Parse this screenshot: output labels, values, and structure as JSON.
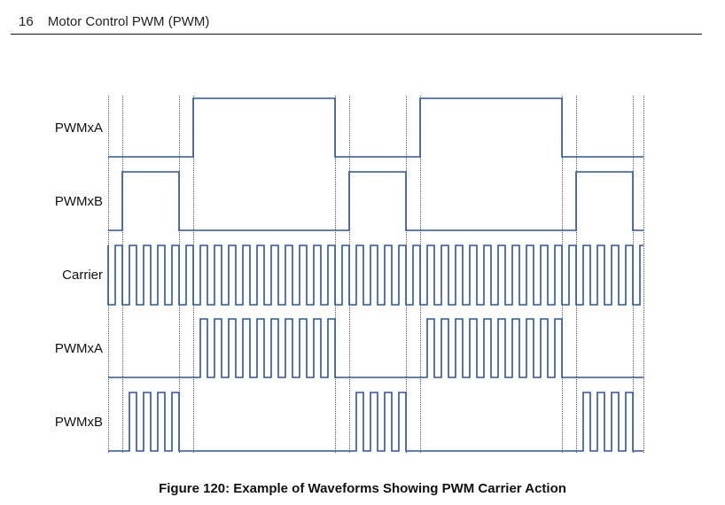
{
  "header": {
    "page_number": "16",
    "section_title": "Motor Control PWM (PWM)"
  },
  "figure": {
    "caption": "Figure 120: Example of Waveforms Showing PWM Carrier Action",
    "signal_labels": [
      "PWMxA",
      "PWMxB",
      "Carrier",
      "PWMxA",
      "PWMxB"
    ],
    "colors": {
      "waveform": "#2f5597",
      "guide": "#555555"
    }
  },
  "chart_data": {
    "type": "timing-diagram",
    "title": "Figure 120: Example of Waveforms Showing PWM Carrier Action",
    "x_range": [
      122,
      726
    ],
    "guide_lines_x": [
      122,
      138,
      202,
      218,
      378,
      394,
      458,
      474,
      634,
      650,
      714,
      726
    ],
    "carrier": {
      "first_rise": 130,
      "period": 16,
      "high_width": 8
    },
    "signals": [
      {
        "name": "PWMxA",
        "row_y_low": 177,
        "row_y_high": 111,
        "high_intervals": [
          [
            218,
            378
          ],
          [
            474,
            634
          ]
        ],
        "gated": false
      },
      {
        "name": "PWMxB",
        "row_y_low": 260,
        "row_y_high": 194,
        "high_intervals": [
          [
            138,
            202
          ],
          [
            394,
            458
          ],
          [
            650,
            714
          ]
        ],
        "gated": false
      },
      {
        "name": "Carrier",
        "row_y_low": 344,
        "row_y_high": 277,
        "gated": false
      },
      {
        "name": "PWMxA",
        "row_y_low": 426,
        "row_y_high": 360,
        "high_intervals": [
          [
            218,
            378
          ],
          [
            474,
            634
          ]
        ],
        "gated": true
      },
      {
        "name": "PWMxB",
        "row_y_low": 509,
        "row_y_high": 443,
        "high_intervals": [
          [
            138,
            202
          ],
          [
            394,
            458
          ],
          [
            650,
            714
          ]
        ],
        "gated": true
      }
    ]
  }
}
